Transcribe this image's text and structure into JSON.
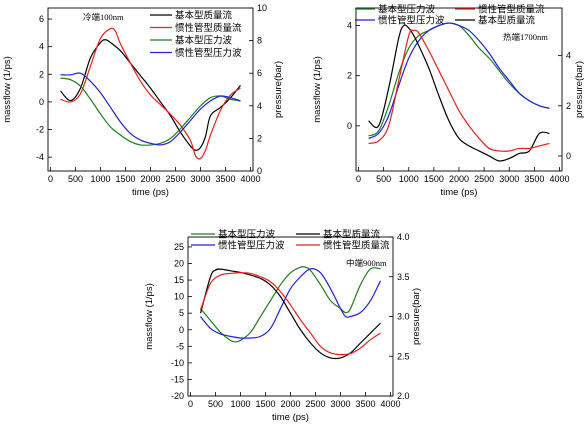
{
  "colors": {
    "black": "#000000",
    "red": "#ee1c1c",
    "green": "#1e7d1e",
    "blue": "#2020e0"
  },
  "chart_data": [
    {
      "type": "line",
      "annotation": "冷端100nm",
      "xlabel": "time (ps)",
      "ylabel": "massflow (1/ps)",
      "y2label": "pressure(bar)",
      "xlim": [
        -50,
        4050
      ],
      "xticks": [
        0,
        500,
        1000,
        1500,
        2000,
        2500,
        3000,
        3500,
        4000
      ],
      "ylim": [
        -5,
        6.8
      ],
      "yticks": [
        -4,
        -2,
        0,
        2,
        4,
        6
      ],
      "y2lim": [
        0,
        10
      ],
      "y2ticks": [
        0,
        2,
        4,
        6,
        8,
        10
      ],
      "legend_position": "top-right",
      "grid": false,
      "series": [
        {
          "name": "基本型质量流",
          "color_key": "black",
          "axis": "left",
          "x": [
            200,
            400,
            600,
            800,
            1000,
            1100,
            1200,
            1400,
            1600,
            1800,
            2000,
            2200,
            2400,
            2600,
            2800,
            2900,
            3000,
            3100,
            3200,
            3400,
            3600,
            3800
          ],
          "y": [
            0.8,
            0.1,
            1.0,
            3.2,
            4.3,
            4.5,
            4.3,
            3.7,
            2.8,
            1.9,
            1.0,
            0.0,
            -1.0,
            -2.2,
            -3.2,
            -3.5,
            -3.3,
            -2.5,
            -1.0,
            -0.4,
            0.3,
            1.2
          ]
        },
        {
          "name": "惯性管型质量流",
          "color_key": "red",
          "axis": "left",
          "x": [
            200,
            400,
            600,
            800,
            1000,
            1200,
            1300,
            1400,
            1600,
            1800,
            2000,
            2200,
            2400,
            2600,
            2800,
            2900,
            3000,
            3100,
            3200,
            3400,
            3600,
            3800
          ],
          "y": [
            0.2,
            0.0,
            0.6,
            2.6,
            4.6,
            5.3,
            5.1,
            4.2,
            2.8,
            1.5,
            0.5,
            -0.2,
            -0.9,
            -1.7,
            -2.8,
            -3.9,
            -4.1,
            -3.5,
            -2.4,
            -0.6,
            0.5,
            1.0
          ]
        },
        {
          "name": "基本型压力波",
          "color_key": "green",
          "axis": "right",
          "x": [
            200,
            400,
            600,
            800,
            1000,
            1200,
            1400,
            1600,
            1800,
            2000,
            2200,
            2400,
            2600,
            2800,
            3000,
            3200,
            3400,
            3600,
            3800
          ],
          "y": [
            5.7,
            5.6,
            5.2,
            4.4,
            3.5,
            2.7,
            2.2,
            1.8,
            1.6,
            1.6,
            1.7,
            2.0,
            2.6,
            3.3,
            4.0,
            4.5,
            4.6,
            4.4,
            4.3
          ]
        },
        {
          "name": "惯性管型压力波",
          "color_key": "blue",
          "axis": "right",
          "x": [
            200,
            400,
            600,
            800,
            1000,
            1200,
            1400,
            1600,
            1800,
            2000,
            2200,
            2400,
            2600,
            2800,
            3000,
            3200,
            3400,
            3600,
            3800
          ],
          "y": [
            5.9,
            5.9,
            6.0,
            5.5,
            4.8,
            3.9,
            3.0,
            2.3,
            1.9,
            1.7,
            1.6,
            1.8,
            2.4,
            3.1,
            3.8,
            4.3,
            4.6,
            4.5,
            4.3
          ]
        }
      ]
    },
    {
      "type": "line",
      "annotation": "热端1700nm",
      "xlabel": "time (ps)",
      "ylabel": "massflow (1/ps)",
      "y2label": "pressure(bar)",
      "xlim": [
        -50,
        4050
      ],
      "xticks": [
        0,
        500,
        1000,
        1500,
        2000,
        2500,
        3000,
        3500,
        4000
      ],
      "ylim": [
        -1.8,
        4.7
      ],
      "yticks": [
        0,
        2,
        4
      ],
      "y2lim": [
        -0.6,
        5.9
      ],
      "y2ticks": [
        0,
        2,
        4
      ],
      "legend_position": "top-center",
      "grid": false,
      "series": [
        {
          "name": "基本型压力波",
          "color_key": "green",
          "axis": "right",
          "x": [
            200,
            400,
            600,
            800,
            1000,
            1200,
            1400,
            1600,
            1800,
            2000,
            2200,
            2400,
            2600,
            2800,
            3000,
            3200,
            3400,
            3600,
            3800
          ],
          "y": [
            0.8,
            1.0,
            2.0,
            3.3,
            4.3,
            4.8,
            5.0,
            5.2,
            5.3,
            5.2,
            4.8,
            4.3,
            3.9,
            3.4,
            2.9,
            2.5,
            2.2,
            2.0,
            1.9
          ]
        },
        {
          "name": "惯性管型压力波",
          "color_key": "blue",
          "axis": "right",
          "x": [
            200,
            400,
            600,
            800,
            1000,
            1200,
            1400,
            1600,
            1800,
            2000,
            2200,
            2400,
            2600,
            2800,
            3000,
            3200,
            3400,
            3600,
            3800
          ],
          "y": [
            0.7,
            0.9,
            1.6,
            2.8,
            3.9,
            4.6,
            5.0,
            5.2,
            5.3,
            5.2,
            5.0,
            4.6,
            4.1,
            3.5,
            3.0,
            2.5,
            2.2,
            2.0,
            1.9
          ]
        },
        {
          "name": "基本型质量流",
          "color_key": "black",
          "axis": "left",
          "x": [
            200,
            400,
            600,
            800,
            900,
            1000,
            1100,
            1200,
            1400,
            1600,
            1800,
            2000,
            2200,
            2400,
            2600,
            2800,
            3000,
            3200,
            3400,
            3600,
            3800
          ],
          "y": [
            0.2,
            0.0,
            1.5,
            3.5,
            4.0,
            3.9,
            3.6,
            3.2,
            2.3,
            1.2,
            0.2,
            -0.5,
            -0.8,
            -1.0,
            -1.2,
            -1.4,
            -1.3,
            -1.1,
            -1.0,
            -0.3,
            -0.3
          ]
        },
        {
          "name": "惯性管型质量流",
          "color_key": "red",
          "axis": "left",
          "x": [
            200,
            400,
            600,
            800,
            1000,
            1100,
            1200,
            1400,
            1600,
            1800,
            2000,
            2200,
            2400,
            2600,
            2800,
            3000,
            3200,
            3400,
            3600,
            3800
          ],
          "y": [
            -0.7,
            -0.6,
            0.0,
            1.8,
            3.6,
            3.8,
            3.7,
            3.0,
            2.2,
            1.4,
            0.6,
            0.0,
            -0.5,
            -0.9,
            -1.0,
            -1.0,
            -0.9,
            -0.9,
            -0.8,
            -0.7
          ]
        }
      ]
    },
    {
      "type": "line",
      "annotation": "中端900nm",
      "xlabel": "time (ps)",
      "ylabel": "massflow (1/ps)",
      "y2label": "pressure(bar)",
      "xlim": [
        -50,
        4050
      ],
      "xticks": [
        0,
        500,
        1000,
        1500,
        2000,
        2500,
        3000,
        3500,
        4000
      ],
      "ylim": [
        -20,
        28
      ],
      "yticks": [
        -20,
        -15,
        -10,
        -5,
        0,
        5,
        10,
        15,
        20,
        25
      ],
      "y2lim": [
        2.0,
        4.0
      ],
      "y2ticks": [
        2.0,
        2.5,
        3.0,
        3.5,
        4.0
      ],
      "legend_position": "top",
      "grid": false,
      "series": [
        {
          "name": "基本型压力波",
          "color_key": "green",
          "axis": "right",
          "x": [
            200,
            400,
            600,
            800,
            900,
            1000,
            1200,
            1400,
            1600,
            1800,
            2000,
            2200,
            2300,
            2400,
            2600,
            2800,
            3000,
            3100,
            3200,
            3400,
            3600,
            3800
          ],
          "y": [
            3.1,
            2.95,
            2.8,
            2.7,
            2.68,
            2.7,
            2.8,
            3.0,
            3.2,
            3.4,
            3.55,
            3.62,
            3.62,
            3.58,
            3.4,
            3.2,
            3.1,
            3.05,
            3.1,
            3.4,
            3.6,
            3.6
          ]
        },
        {
          "name": "惯性管型压力波",
          "color_key": "blue",
          "axis": "right",
          "x": [
            200,
            400,
            600,
            800,
            1000,
            1200,
            1400,
            1600,
            1800,
            2000,
            2200,
            2400,
            2600,
            2800,
            3000,
            3100,
            3200,
            3400,
            3600,
            3800
          ],
          "y": [
            3.0,
            2.85,
            2.78,
            2.75,
            2.73,
            2.73,
            2.75,
            2.85,
            3.1,
            3.35,
            3.5,
            3.6,
            3.55,
            3.35,
            3.1,
            3.0,
            3.0,
            3.05,
            3.2,
            3.45
          ]
        },
        {
          "name": "基本型质量流",
          "color_key": "black",
          "axis": "left",
          "x": [
            200,
            400,
            500,
            600,
            800,
            1000,
            1200,
            1400,
            1600,
            1800,
            2000,
            2200,
            2400,
            2600,
            2800,
            3000,
            3200,
            3400,
            3600,
            3800
          ],
          "y": [
            5,
            16,
            18,
            18.3,
            17.8,
            17.3,
            16.5,
            15.5,
            13.5,
            10.0,
            5.0,
            0.0,
            -4.0,
            -7.0,
            -8.5,
            -8.5,
            -7.0,
            -4.0,
            -1.0,
            2.0
          ]
        },
        {
          "name": "惯性管型质量流",
          "color_key": "red",
          "axis": "left",
          "x": [
            200,
            400,
            600,
            800,
            1000,
            1200,
            1400,
            1600,
            1800,
            2000,
            2200,
            2400,
            2600,
            2800,
            3000,
            3200,
            3400,
            3600,
            3800
          ],
          "y": [
            6,
            14,
            16.5,
            17.0,
            17.2,
            17.0,
            16.0,
            14.5,
            11.5,
            7.5,
            3.0,
            -1.0,
            -5.0,
            -7.0,
            -7.5,
            -7.2,
            -5.5,
            -3.0,
            -1.0
          ]
        }
      ]
    }
  ]
}
